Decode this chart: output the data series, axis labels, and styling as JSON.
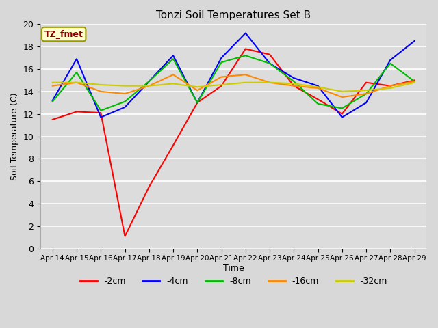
{
  "title": "Tonzi Soil Temperatures Set B",
  "xlabel": "Time",
  "ylabel": "Soil Temperature (C)",
  "ylim": [
    0,
    20
  ],
  "yticks": [
    0,
    2,
    4,
    6,
    8,
    10,
    12,
    14,
    16,
    18,
    20
  ],
  "bg_color": "#e0e0e0",
  "plot_bg_color": "#dcdcdc",
  "annotation_text": "TZ_fmet",
  "annotation_bg": "#ffffcc",
  "annotation_edge": "#999900",
  "annotation_color": "#8b0000",
  "series_colors": {
    "-2cm": "#ff0000",
    "-4cm": "#0000ff",
    "-8cm": "#00bb00",
    "-16cm": "#ff8800",
    "-32cm": "#cccc00"
  },
  "x_tick_labels": [
    "Apr 14",
    "Apr 15",
    "Apr 16",
    "Apr 17",
    "Apr 18",
    "Apr 19",
    "Apr 20",
    "Apr 21",
    "Apr 22",
    "Apr 23",
    "Apr 24",
    "Apr 25",
    "Apr 26",
    "Apr 27",
    "Apr 28",
    "Apr 29"
  ],
  "data": {
    "-2cm": [
      11.5,
      12.2,
      12.1,
      1.1,
      5.5,
      9.2,
      13.0,
      14.5,
      17.8,
      17.3,
      14.5,
      13.3,
      12.0,
      14.8,
      14.5,
      15.0
    ],
    "-4cm": [
      13.2,
      16.9,
      11.7,
      12.6,
      14.9,
      17.2,
      13.0,
      17.0,
      19.2,
      16.5,
      15.2,
      14.5,
      11.7,
      13.0,
      16.8,
      18.5
    ],
    "-8cm": [
      13.1,
      15.7,
      12.3,
      13.1,
      14.9,
      16.9,
      13.0,
      16.6,
      17.2,
      16.5,
      14.9,
      12.9,
      12.5,
      13.8,
      16.5,
      14.9
    ],
    "-16cm": [
      14.5,
      14.8,
      14.0,
      13.8,
      14.5,
      15.5,
      14.1,
      15.3,
      15.5,
      14.8,
      14.5,
      14.3,
      13.5,
      13.8,
      14.5,
      14.9
    ],
    "-32cm": [
      14.8,
      14.8,
      14.6,
      14.5,
      14.5,
      14.7,
      14.4,
      14.6,
      14.8,
      14.8,
      14.7,
      14.4,
      14.0,
      14.1,
      14.3,
      14.8
    ]
  }
}
